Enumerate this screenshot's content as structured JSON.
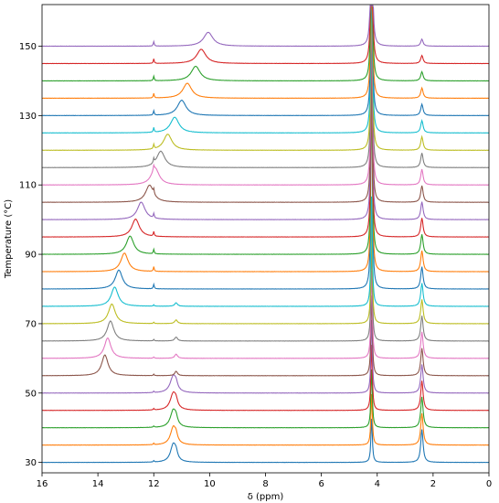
{
  "chart_data": {
    "type": "line",
    "xlabel": "δ (ppm)",
    "ylabel": "Temperature (°C)",
    "xlim": [
      16,
      0
    ],
    "ylim": [
      27,
      162
    ],
    "x_reversed": true,
    "xticks": [
      16,
      14,
      12,
      10,
      8,
      6,
      4,
      2,
      0
    ],
    "yticks": [
      30,
      50,
      70,
      90,
      110,
      130,
      150
    ],
    "grid": false,
    "legend": "none",
    "stack_step": 5,
    "fixed_peaks_ppm": [
      4.2,
      2.4
    ],
    "series": [
      {
        "temperature": 30,
        "peak_ppm": 11.3,
        "color": "#1f77b4"
      },
      {
        "temperature": 35,
        "peak_ppm": 11.3,
        "color": "#ff7f0e"
      },
      {
        "temperature": 40,
        "peak_ppm": 11.3,
        "color": "#2ca02c"
      },
      {
        "temperature": 45,
        "peak_ppm": 11.3,
        "color": "#d62728"
      },
      {
        "temperature": 50,
        "peak_ppm": 11.3,
        "color": "#9467bd"
      },
      {
        "temperature": 55,
        "peak_ppm": 13.75,
        "color": "#8c564b"
      },
      {
        "temperature": 60,
        "peak_ppm": 13.65,
        "color": "#e377c2"
      },
      {
        "temperature": 65,
        "peak_ppm": 13.55,
        "color": "#7f7f7f"
      },
      {
        "temperature": 70,
        "peak_ppm": 13.5,
        "color": "#bcbd22"
      },
      {
        "temperature": 75,
        "peak_ppm": 13.4,
        "color": "#17becf"
      },
      {
        "temperature": 80,
        "peak_ppm": 13.25,
        "color": "#1f77b4"
      },
      {
        "temperature": 85,
        "peak_ppm": 13.05,
        "color": "#ff7f0e"
      },
      {
        "temperature": 90,
        "peak_ppm": 12.85,
        "color": "#2ca02c"
      },
      {
        "temperature": 95,
        "peak_ppm": 12.65,
        "color": "#d62728"
      },
      {
        "temperature": 100,
        "peak_ppm": 12.45,
        "color": "#9467bd"
      },
      {
        "temperature": 105,
        "peak_ppm": 12.15,
        "color": "#8c564b"
      },
      {
        "temperature": 110,
        "peak_ppm": 11.95,
        "color": "#e377c2"
      },
      {
        "temperature": 115,
        "peak_ppm": 11.75,
        "color": "#7f7f7f"
      },
      {
        "temperature": 120,
        "peak_ppm": 11.5,
        "color": "#bcbd22"
      },
      {
        "temperature": 125,
        "peak_ppm": 11.25,
        "color": "#17becf"
      },
      {
        "temperature": 130,
        "peak_ppm": 11.0,
        "color": "#1f77b4"
      },
      {
        "temperature": 135,
        "peak_ppm": 10.8,
        "color": "#ff7f0e"
      },
      {
        "temperature": 140,
        "peak_ppm": 10.5,
        "color": "#2ca02c"
      },
      {
        "temperature": 145,
        "peak_ppm": 10.3,
        "color": "#d62728"
      },
      {
        "temperature": 150,
        "peak_ppm": 10.05,
        "color": "#9467bd"
      }
    ]
  }
}
